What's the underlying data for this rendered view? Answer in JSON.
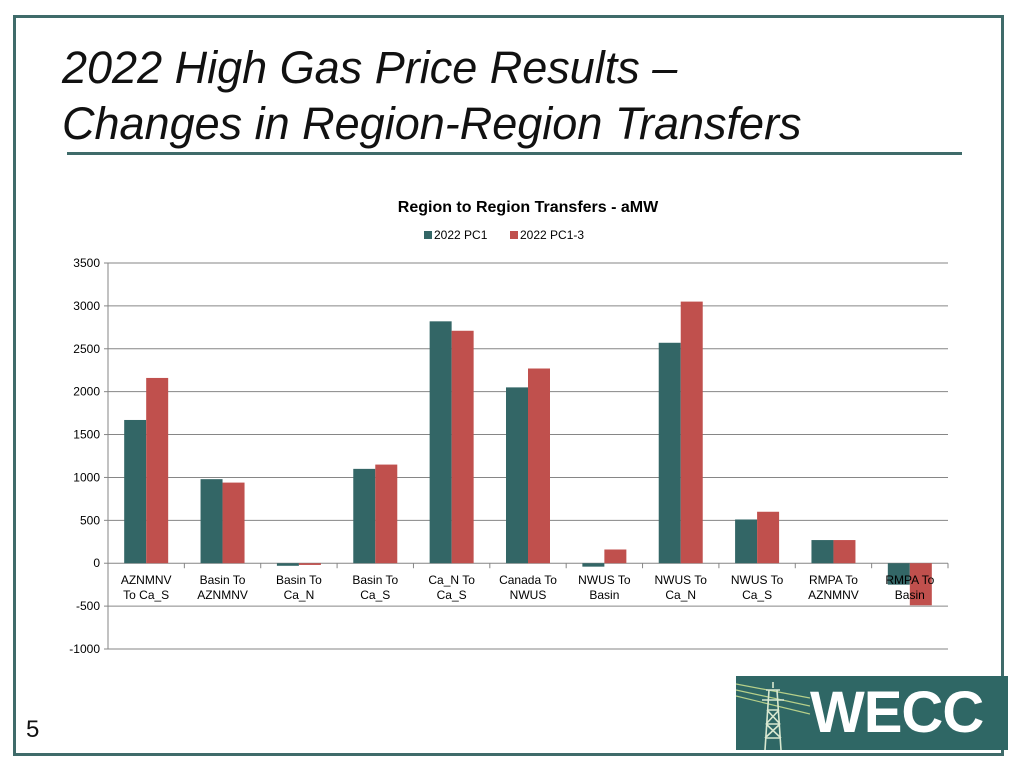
{
  "slide": {
    "title_line1": "2022 High Gas Price Results –",
    "title_line2": "Changes in Region-Region Transfers",
    "page_number": "5"
  },
  "logo": {
    "text": "WECC",
    "icon": "transmission-tower-icon"
  },
  "colors": {
    "accent": "#3f6b6a",
    "series1": "#336666",
    "series2": "#c0504d"
  },
  "chart_data": {
    "type": "bar",
    "title": "Region to Region Transfers - aMW",
    "categories": [
      [
        "AZNMNV",
        "To Ca_S"
      ],
      [
        "Basin To",
        "AZNMNV"
      ],
      [
        "Basin To",
        "Ca_N"
      ],
      [
        "Basin To",
        "Ca_S"
      ],
      [
        "Ca_N To",
        "Ca_S"
      ],
      [
        "Canada To",
        "NWUS"
      ],
      [
        "NWUS To",
        "Basin"
      ],
      [
        "NWUS To",
        "Ca_N"
      ],
      [
        "NWUS To",
        "Ca_S"
      ],
      [
        "RMPA To",
        "AZNMNV"
      ],
      [
        "RMPA To",
        "Basin"
      ]
    ],
    "series": [
      {
        "name": "2022 PC1",
        "color": "#336666",
        "values": [
          1670,
          980,
          -30,
          1100,
          2820,
          2050,
          -40,
          2570,
          510,
          270,
          -250
        ]
      },
      {
        "name": "2022 PC1-3",
        "color": "#c0504d",
        "values": [
          2160,
          940,
          -20,
          1150,
          2710,
          2270,
          160,
          3050,
          600,
          270,
          -490
        ]
      }
    ],
    "ylim": [
      -1000,
      3500
    ],
    "yticks": [
      3500,
      3000,
      2500,
      2000,
      1500,
      1000,
      500,
      0,
      -500,
      -1000
    ],
    "grid": true,
    "legend": "top"
  }
}
